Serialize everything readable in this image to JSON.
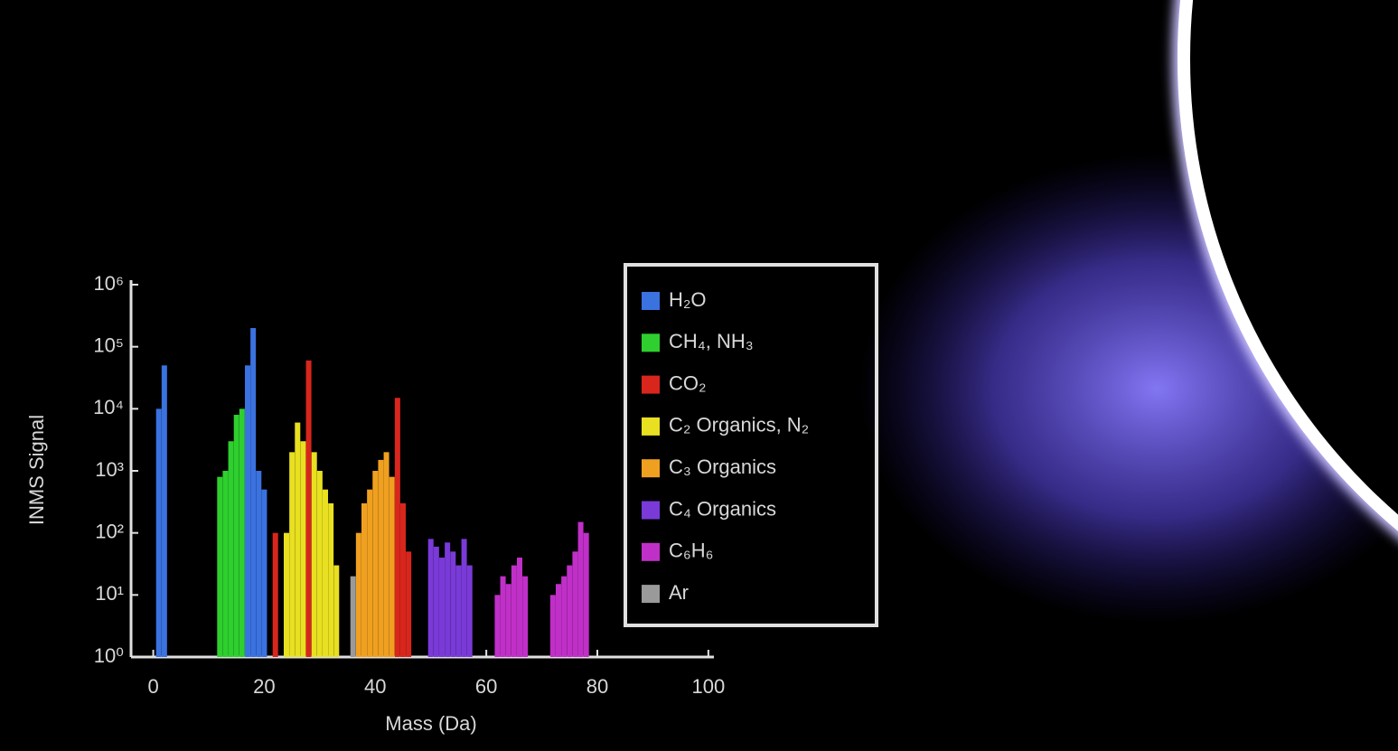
{
  "chart_data": {
    "type": "bar",
    "x_label": "Mass (Da)",
    "y_label": "INMS Signal",
    "xlim": [
      -4,
      101
    ],
    "xticks": [
      0,
      20,
      40,
      60,
      80,
      100
    ],
    "ylim": [
      1,
      1000000
    ],
    "log_y": true,
    "yticks": [
      {
        "value": 1,
        "label": "10⁰"
      },
      {
        "value": 10,
        "label": "10¹"
      },
      {
        "value": 100,
        "label": "10²"
      },
      {
        "value": 1000,
        "label": "10³"
      },
      {
        "value": 10000,
        "label": "10⁴"
      },
      {
        "value": 100000,
        "label": "10⁵"
      },
      {
        "value": 1000000,
        "label": "10⁶"
      }
    ],
    "series": [
      {
        "name": "H₂O",
        "color": "#3a72e0",
        "x": [
          1,
          2,
          17,
          18,
          19,
          20
        ],
        "values": [
          10000,
          50000,
          50000,
          200000,
          1000,
          500
        ]
      },
      {
        "name": "CH₄, NH₃",
        "color": "#2ecf2e",
        "x": [
          12,
          13,
          14,
          15,
          16
        ],
        "values": [
          800,
          1000,
          3000,
          8000,
          10000
        ]
      },
      {
        "name": "CO₂",
        "color": "#d8261c",
        "x": [
          22,
          28,
          44,
          45,
          46
        ],
        "values": [
          100,
          60000,
          15000,
          300,
          50
        ]
      },
      {
        "name": "C₂ Organics, N₂",
        "color": "#e8e020",
        "x": [
          24,
          25,
          26,
          27,
          29,
          30,
          31,
          32,
          33
        ],
        "values": [
          100,
          2000,
          6000,
          3000,
          2000,
          1000,
          500,
          300,
          30
        ]
      },
      {
        "name": "C₃ Organics",
        "color": "#f0a020",
        "x": [
          37,
          38,
          39,
          40,
          41,
          42,
          43
        ],
        "values": [
          100,
          300,
          500,
          1000,
          1500,
          2000,
          800
        ]
      },
      {
        "name": "C₄ Organics",
        "color": "#7a3ad8",
        "x": [
          50,
          51,
          52,
          53,
          54,
          55,
          56,
          57
        ],
        "values": [
          80,
          60,
          40,
          70,
          50,
          30,
          80,
          30
        ]
      },
      {
        "name": "C₆H₆",
        "color": "#c030c8",
        "x": [
          62,
          63,
          64,
          65,
          66,
          67,
          72,
          73,
          74,
          75,
          76,
          77,
          78
        ],
        "values": [
          10,
          20,
          15,
          30,
          40,
          20,
          10,
          15,
          20,
          30,
          50,
          150,
          100
        ]
      },
      {
        "name": "Ar",
        "color": "#9a9a9a",
        "x": [
          36
        ],
        "values": [
          20
        ]
      }
    ]
  }
}
